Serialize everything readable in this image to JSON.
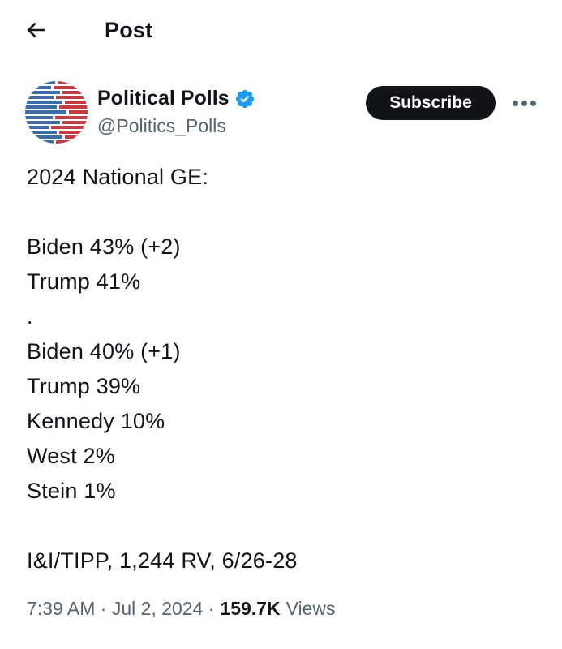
{
  "header": {
    "title": "Post",
    "back_icon": "arrow-left-icon"
  },
  "author": {
    "display_name": "Political Polls",
    "handle": "@Politics_Polls",
    "verified": true,
    "subscribe_label": "Subscribe",
    "more_icon": "ellipsis-icon"
  },
  "post": {
    "lines": [
      "2024 National GE:",
      "",
      "Biden 43% (+2)",
      "Trump 41%",
      ".",
      "Biden 40% (+1)",
      "Trump 39%",
      "Kennedy 10%",
      "West 2%",
      "Stein 1%",
      "",
      "I&I/TIPP, 1,244 RV, 6/26-28"
    ]
  },
  "footer": {
    "meta_text": "7:39 AM · Jul 2, 2024 ·",
    "views_count": "159.7K",
    "views_label": "Views"
  },
  "colors": {
    "text": "#0f1419",
    "secondary": "#536471",
    "verified_blue": "#1d9bf0",
    "subscribe_bg": "#0f1419",
    "avatar_blue": "#3c6ea5",
    "avatar_red": "#c23d42",
    "bg": "#ffffff"
  }
}
